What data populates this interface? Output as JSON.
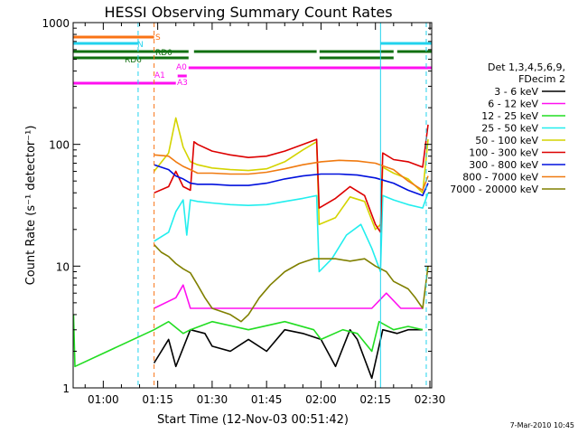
{
  "chart_data": {
    "type": "line",
    "title": "HESSI Observing Summary Count Rates",
    "xlabel": "Start Time (12-Nov-03 00:51:42)",
    "ylabel": "Count Rate (s⁻¹ detector⁻¹)",
    "ylog": true,
    "ylim": [
      1,
      1000
    ],
    "x_unit": "minutes after 00:00 UT",
    "xlim": [
      51.7,
      150.5
    ],
    "x_ticks": [
      {
        "x": 60,
        "label": "01:00"
      },
      {
        "x": 75,
        "label": "01:15"
      },
      {
        "x": 90,
        "label": "01:30"
      },
      {
        "x": 105,
        "label": "01:45"
      },
      {
        "x": 120,
        "label": "02:00"
      },
      {
        "x": 135,
        "label": "02:15"
      },
      {
        "x": 150,
        "label": "02:30"
      }
    ],
    "y_ticks": [
      {
        "y": 1,
        "label": "1"
      },
      {
        "y": 10,
        "label": "10"
      },
      {
        "y": 100,
        "label": "100"
      },
      {
        "y": 1000,
        "label": "1000"
      }
    ],
    "legend_header": [
      "Det 1,3,4,5,6,9,",
      "FDecim 2"
    ],
    "legend_position": "right",
    "footer": "7-Mar-2010 10:45",
    "vlines": [
      {
        "x": 69.6,
        "color": "#22d3ee",
        "style": "dashed"
      },
      {
        "x": 74.0,
        "color": "#f97316",
        "style": "dashed"
      },
      {
        "x": 136.4,
        "color": "#22d3ee",
        "style": "solid"
      },
      {
        "x": 149.0,
        "color": "#22d3ee",
        "style": "dashed"
      }
    ],
    "flags": [
      {
        "label": "S",
        "color": "#f97316",
        "segments": [
          [
            51.7,
            74.0
          ]
        ]
      },
      {
        "label": "N",
        "color": "#22d3ee",
        "segments": [
          [
            51.7,
            69.6
          ],
          [
            136.4,
            150.5
          ]
        ]
      },
      {
        "label": "RD0",
        "color": "#107010",
        "segments": [
          [
            51.7,
            83.5
          ],
          [
            85.0,
            118.8
          ],
          [
            119.6,
            140.0
          ],
          [
            141.0,
            150.5
          ]
        ]
      },
      {
        "label": "RD6",
        "color": "#107010",
        "segments": [
          [
            51.7,
            83.5
          ],
          [
            119.6,
            140.0
          ]
        ]
      },
      {
        "label": "A0",
        "color": "#ff10f0",
        "segments": [
          [
            83.5,
            150.5
          ]
        ]
      },
      {
        "label": "A1",
        "color": "#ff10f0",
        "segments": [
          [
            80.5,
            83.0
          ]
        ]
      },
      {
        "label": "A3",
        "color": "#ff10f0",
        "segments": [
          [
            51.7,
            80.0
          ]
        ]
      }
    ],
    "series": [
      {
        "name": "3 - 6 keV",
        "color": "#000000",
        "x": [
          74,
          78,
          80,
          84,
          88,
          90,
          95,
          100,
          105,
          110,
          115,
          120,
          124,
          128,
          130,
          134,
          137,
          141,
          144,
          148
        ],
        "y": [
          1.6,
          2.5,
          1.5,
          3.0,
          2.8,
          2.2,
          2.0,
          2.5,
          2.0,
          3.0,
          2.8,
          2.5,
          1.5,
          3.0,
          2.5,
          1.2,
          3.0,
          2.8,
          3.0,
          3.0
        ]
      },
      {
        "name": "6 - 12 keV",
        "color": "#ff10f0",
        "x": [
          74,
          80,
          82,
          84,
          90,
          100,
          110,
          118,
          120,
          126,
          130,
          134,
          138,
          142,
          146,
          148
        ],
        "y": [
          4.5,
          5.5,
          7.0,
          4.5,
          4.5,
          4.5,
          4.5,
          4.5,
          4.5,
          4.5,
          4.5,
          4.5,
          6.0,
          4.5,
          4.5,
          4.5
        ]
      },
      {
        "name": "12 - 25 keV",
        "color": "#22dd22",
        "x": [
          51.8,
          52.2,
          74,
          78,
          82,
          84,
          90,
          100,
          110,
          118,
          120,
          126,
          130,
          134,
          136,
          140,
          144,
          148
        ],
        "y": [
          4.0,
          1.5,
          3.0,
          3.5,
          2.8,
          3.0,
          3.5,
          3.0,
          3.5,
          3.0,
          2.5,
          3.0,
          2.8,
          2.0,
          3.5,
          3.0,
          3.2,
          3.0
        ]
      },
      {
        "name": "25 - 50 keV",
        "color": "#22eeee",
        "x": [
          74,
          78,
          80,
          82,
          83,
          84,
          86,
          90,
          95,
          100,
          105,
          110,
          115,
          118.8,
          119.5,
          123,
          127,
          131,
          134,
          136.4,
          137,
          140,
          144,
          148,
          149.5
        ],
        "y": [
          16,
          19,
          28,
          35,
          18,
          35,
          34,
          33,
          32,
          31.5,
          32,
          34,
          36,
          38,
          9.0,
          11.5,
          18,
          22,
          14,
          9.0,
          38,
          35,
          32,
          30,
          40
        ]
      },
      {
        "name": "50 - 100 keV",
        "color": "#d4d400",
        "x": [
          74,
          78,
          80,
          82,
          84,
          86,
          90,
          95,
          100,
          105,
          110,
          115,
          118.8,
          119.5,
          124,
          128,
          132,
          135,
          136.4,
          137,
          140,
          144,
          148,
          149.5
        ],
        "y": [
          60,
          85,
          165,
          95,
          72,
          68,
          64,
          62,
          61,
          63,
          72,
          90,
          105,
          22,
          25,
          37,
          34,
          20,
          22,
          65,
          58,
          52,
          40,
          110
        ]
      },
      {
        "name": "100 - 300 keV",
        "color": "#dd0000",
        "x": [
          74,
          78,
          80,
          82,
          84,
          85,
          86,
          90,
          95,
          100,
          105,
          110,
          115,
          118.8,
          119.5,
          124,
          128,
          132,
          135,
          136.4,
          137,
          140,
          144,
          148,
          149.5
        ],
        "y": [
          40,
          45,
          60,
          45,
          42,
          105,
          100,
          88,
          82,
          78,
          80,
          88,
          100,
          110,
          30,
          36,
          45,
          38,
          22,
          19,
          85,
          75,
          72,
          65,
          145
        ]
      },
      {
        "name": "300 - 800 keV",
        "color": "#0010dd",
        "x": [
          74,
          78,
          80,
          82,
          84,
          86,
          90,
          95,
          100,
          105,
          110,
          115,
          120,
          125,
          130,
          135,
          140,
          144,
          148,
          149.5
        ],
        "y": [
          68,
          62,
          55,
          52,
          48,
          47,
          47,
          46,
          46,
          48,
          52,
          55,
          57,
          57,
          56,
          53,
          48,
          42,
          38,
          48
        ]
      },
      {
        "name": "800 - 7000 keV",
        "color": "#f07a10",
        "x": [
          74,
          78,
          80,
          82,
          84,
          86,
          90,
          95,
          100,
          105,
          110,
          115,
          120,
          125,
          130,
          135,
          140,
          144,
          148,
          149.5
        ],
        "y": [
          82,
          80,
          72,
          66,
          62,
          58,
          58,
          57,
          57,
          59,
          63,
          68,
          72,
          74,
          73,
          70,
          62,
          50,
          42,
          55
        ]
      },
      {
        "name": "7000 - 20000 keV",
        "color": "#808000",
        "x": [
          74,
          76,
          78,
          80,
          82,
          84,
          86,
          88,
          90,
          95,
          98,
          100,
          103,
          106,
          110,
          114,
          116,
          118,
          120,
          124,
          128,
          132,
          135,
          138,
          140,
          144,
          146,
          148,
          149.5
        ],
        "y": [
          15,
          13,
          12,
          10.5,
          9.5,
          8.8,
          7.0,
          5.5,
          4.5,
          4.0,
          3.5,
          4.0,
          5.5,
          7.0,
          9.0,
          10.5,
          11.0,
          11.5,
          11.5,
          11.5,
          11.0,
          11.5,
          10.0,
          9.0,
          7.5,
          6.5,
          5.5,
          4.5,
          10.0
        ]
      }
    ]
  }
}
